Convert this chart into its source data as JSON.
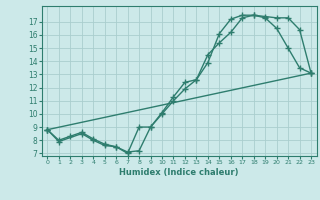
{
  "line1_x": [
    0,
    1,
    2,
    3,
    4,
    5,
    6,
    7,
    8,
    9,
    10,
    11,
    12,
    13,
    14,
    15,
    16,
    17,
    18,
    19,
    20,
    21,
    22,
    23
  ],
  "line1_y": [
    8.8,
    8.0,
    8.3,
    8.6,
    8.1,
    7.7,
    7.5,
    7.1,
    7.2,
    9.0,
    10.1,
    11.3,
    12.4,
    12.6,
    14.5,
    15.4,
    16.2,
    17.3,
    17.5,
    17.4,
    17.3,
    17.3,
    16.4,
    13.1
  ],
  "line2_x": [
    0,
    1,
    3,
    4,
    5,
    6,
    7,
    8,
    9,
    10,
    11,
    12,
    13,
    14,
    15,
    16,
    17,
    18,
    19,
    20,
    21,
    22,
    23
  ],
  "line2_y": [
    8.8,
    7.9,
    8.5,
    8.0,
    7.6,
    7.5,
    7.0,
    9.0,
    9.0,
    10.0,
    11.0,
    11.9,
    12.6,
    13.9,
    16.1,
    17.2,
    17.5,
    17.5,
    17.3,
    16.5,
    15.0,
    13.5,
    13.1
  ],
  "line3_x": [
    0,
    23
  ],
  "line3_y": [
    8.8,
    13.1
  ],
  "color": "#2e7d6e",
  "bg_color": "#cce9e9",
  "grid_color": "#aacece",
  "xlabel": "Humidex (Indice chaleur)",
  "xlim": [
    -0.5,
    23.5
  ],
  "ylim": [
    6.8,
    18.2
  ],
  "yticks": [
    7,
    8,
    9,
    10,
    11,
    12,
    13,
    14,
    15,
    16,
    17
  ],
  "xticks": [
    0,
    1,
    2,
    3,
    4,
    5,
    6,
    7,
    8,
    9,
    10,
    11,
    12,
    13,
    14,
    15,
    16,
    17,
    18,
    19,
    20,
    21,
    22,
    23
  ],
  "marker": "+",
  "markersize": 4,
  "linewidth": 1.0
}
